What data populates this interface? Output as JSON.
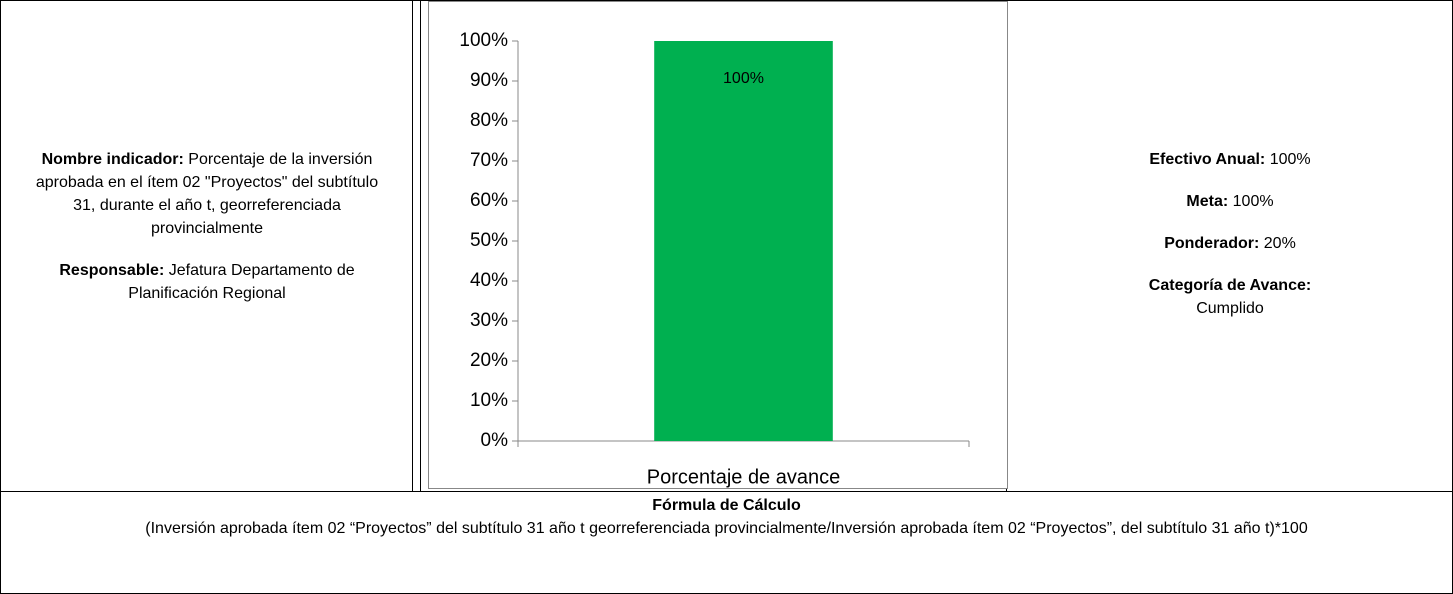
{
  "left": {
    "items": [
      {
        "label": "Nombre indicador:",
        "value": "Porcentaje de la inversión aprobada en el ítem 02 \"Proyectos\" del subtítulo 31, durante el año t, georreferenciada provincialmente"
      },
      {
        "label": "Responsable:",
        "value": "Jefatura Departamento de Planificación Regional"
      }
    ]
  },
  "chart_data": {
    "type": "bar",
    "categories": [
      "Porcentaje de avance"
    ],
    "values": [
      100
    ],
    "value_labels": [
      "100%"
    ],
    "color": "#00b050",
    "ylim": [
      0,
      100
    ],
    "yticks": [
      {
        "value": 0,
        "label": "0%"
      },
      {
        "value": 10,
        "label": "10%"
      },
      {
        "value": 20,
        "label": "20%"
      },
      {
        "value": 30,
        "label": "30%"
      },
      {
        "value": 40,
        "label": "40%"
      },
      {
        "value": 50,
        "label": "50%"
      },
      {
        "value": 60,
        "label": "60%"
      },
      {
        "value": 70,
        "label": "70%"
      },
      {
        "value": 80,
        "label": "80%"
      },
      {
        "value": 90,
        "label": "90%"
      },
      {
        "value": 100,
        "label": "100%"
      }
    ],
    "grid": false
  },
  "right": {
    "items": [
      {
        "label": "Efectivo Anual:",
        "value": "100%"
      },
      {
        "label": "Meta:",
        "value": "100%"
      },
      {
        "label": "Ponderador:",
        "value": "20%"
      },
      {
        "label": "Categoría de Avance:",
        "value": "Cumplido"
      }
    ]
  },
  "formula": {
    "title": "Fórmula de Cálculo",
    "text": "(Inversión aprobada ítem 02 “Proyectos” del subtítulo 31 año t georreferenciada provincialmente/Inversión aprobada ítem 02 “Proyectos”, del subtítulo 31 año t)*100"
  }
}
